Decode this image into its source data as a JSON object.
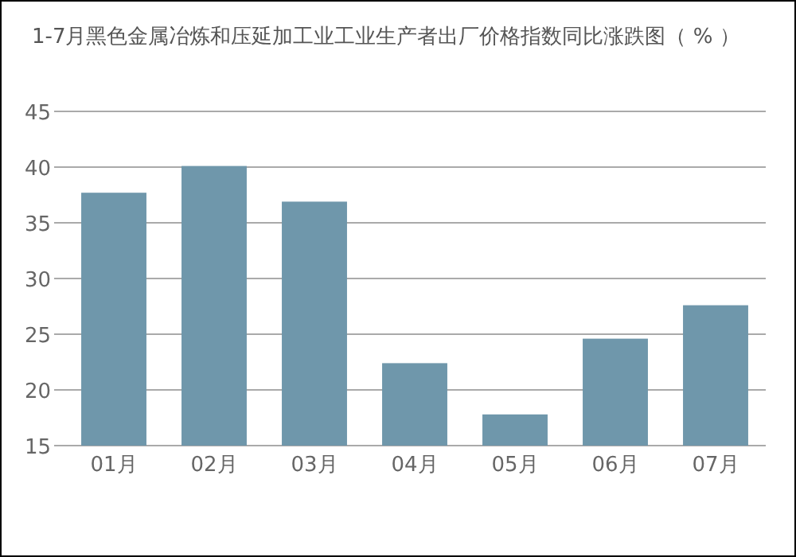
{
  "chart_data": {
    "type": "bar",
    "title": "1-7月黑色金属冶炼和压延加工业工业生产者出厂价格指数同比涨跌图（ % ）",
    "categories": [
      "01月",
      "02月",
      "03月",
      "04月",
      "05月",
      "06月",
      "07月"
    ],
    "values": [
      37.7,
      40.1,
      36.9,
      22.4,
      17.8,
      24.6,
      27.6
    ],
    "color": "#6f97ab",
    "ylim": [
      15,
      45
    ],
    "yticks": [
      15,
      20,
      25,
      30,
      35,
      40,
      45
    ],
    "grid": "y"
  }
}
